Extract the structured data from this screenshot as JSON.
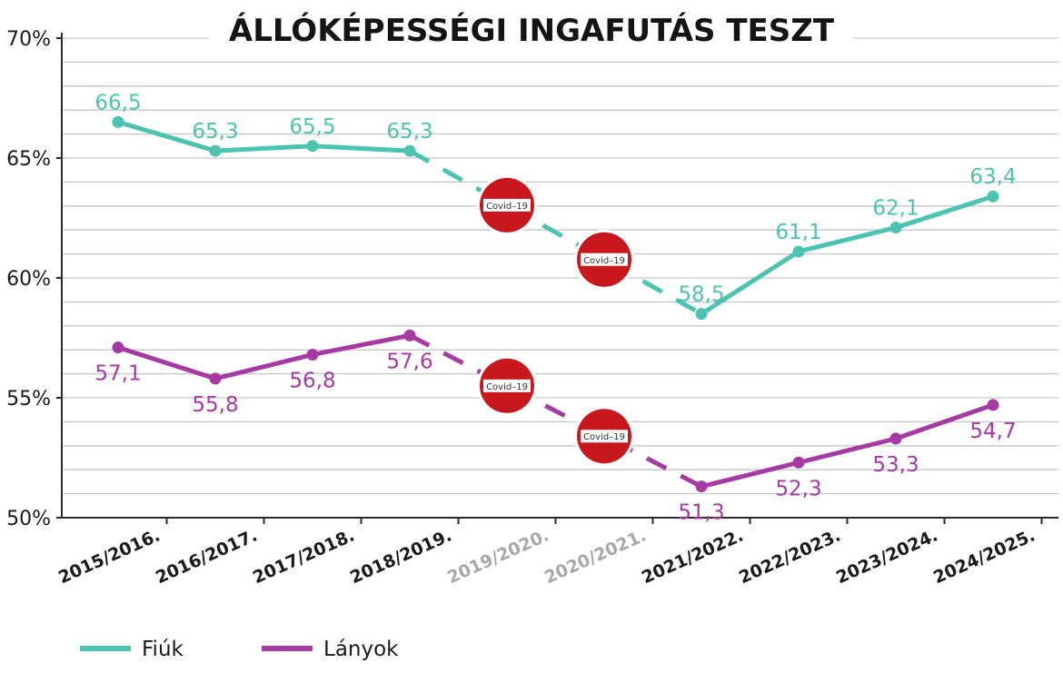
{
  "chart_data": {
    "type": "line",
    "title": "ÁLLÓKÉPESSÉGI INGAFUTÁS TESZT",
    "categories": [
      "2015/2016.",
      "2016/2017.",
      "2017/2018.",
      "2018/2019.",
      "2019/2020.",
      "2020/2021.",
      "2021/2022.",
      "2022/2023.",
      "2023/2024.",
      "2024/2025."
    ],
    "greyed_categories": [
      "2019/2020.",
      "2020/2021."
    ],
    "ylim": [
      50,
      70
    ],
    "y_ticks": [
      50,
      55,
      60,
      65,
      70
    ],
    "y_tick_labels": [
      "50%",
      "55%",
      "60%",
      "65%",
      "70%"
    ],
    "y_minor_step": 1,
    "grid": true,
    "legend_position": "bottom-left",
    "series": [
      {
        "name": "Fiúk",
        "color": "#4cc2b0",
        "values": [
          66.5,
          65.3,
          65.5,
          65.3,
          null,
          null,
          58.5,
          61.1,
          62.1,
          63.4
        ],
        "labels": [
          "66,5",
          "65,3",
          "65,5",
          "65,3",
          "",
          "",
          "58,5",
          "61,1",
          "62,1",
          "63,4"
        ],
        "label_side": "above"
      },
      {
        "name": "Lányok",
        "color": "#a63aa3",
        "values": [
          57.1,
          55.8,
          56.8,
          57.6,
          null,
          null,
          51.3,
          52.3,
          53.3,
          54.7
        ],
        "labels": [
          "57,1",
          "55,8",
          "56,8",
          "57,6",
          "",
          "",
          "51,3",
          "52,3",
          "53,3",
          "54,7"
        ],
        "label_side": "below"
      }
    ],
    "dashed_gap": {
      "from": "2018/2019.",
      "to": "2021/2022."
    },
    "annotations": [
      {
        "text": "Covid–19",
        "icon": "no-entry-sign-icon",
        "series": "Fiúk",
        "category": "2019/2020."
      },
      {
        "text": "Covid–19",
        "icon": "no-entry-sign-icon",
        "series": "Fiúk",
        "category": "2020/2021."
      },
      {
        "text": "Covid–19",
        "icon": "no-entry-sign-icon",
        "series": "Lányok",
        "category": "2019/2020."
      },
      {
        "text": "Covid–19",
        "icon": "no-entry-sign-icon",
        "series": "Lányok",
        "category": "2020/2021."
      }
    ],
    "colors": {
      "axis": "#2b2b2b",
      "grid": "#c7c7c7",
      "greyed_label": "#a8a8a8",
      "covid_sign": "#c8181d"
    }
  }
}
